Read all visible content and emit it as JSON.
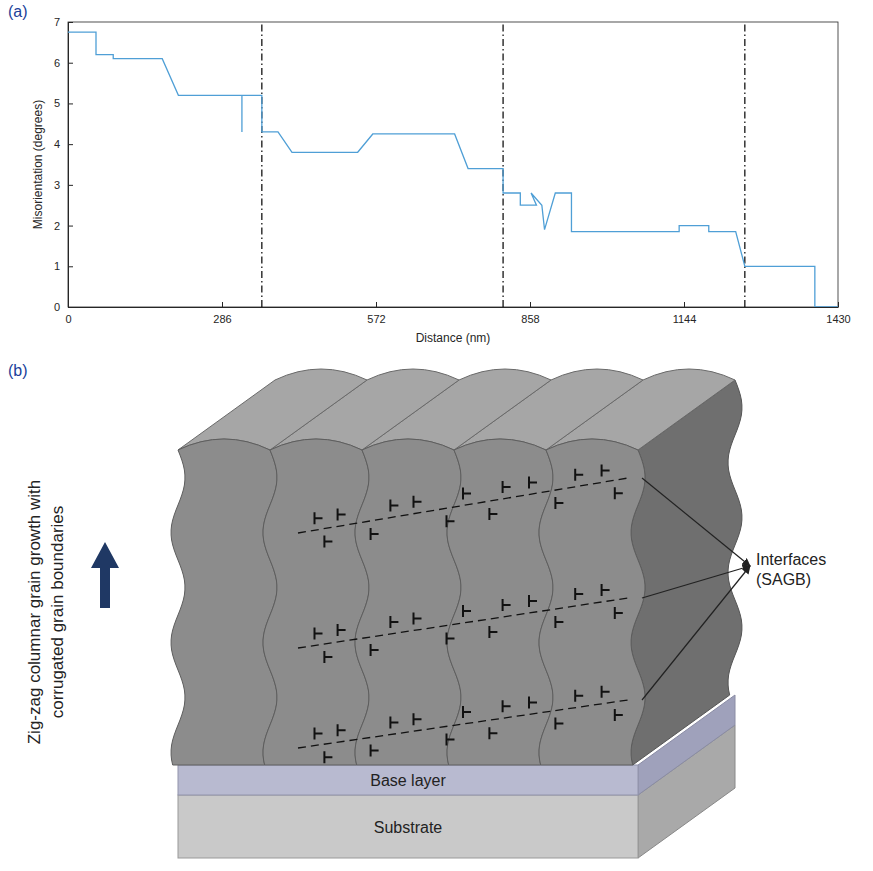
{
  "panels": [
    "(a)",
    "(b)"
  ],
  "chart_data": {
    "type": "line",
    "x_label": "Distance (nm)",
    "y_label": "Misorientation (degrees)",
    "xlim": [
      0,
      1430
    ],
    "ylim": [
      0,
      7
    ],
    "xticks": [
      0,
      286,
      572,
      858,
      1144,
      1430
    ],
    "yticks": [
      0,
      1,
      2,
      3,
      4,
      5,
      6,
      7
    ],
    "grid": false,
    "color": "#4f9fd6",
    "x": [
      0,
      52,
      52,
      84,
      84,
      175,
      205,
      323,
      323,
      323,
      360,
      360,
      390,
      416,
      538,
      566,
      718,
      743,
      808,
      808,
      840,
      840,
      870,
      860,
      880,
      885,
      905,
      935,
      935,
      1135,
      1135,
      1190,
      1190,
      1240,
      1257,
      1387,
      1387,
      1430
    ],
    "values": [
      6.75,
      6.75,
      6.2,
      6.2,
      6.1,
      6.1,
      5.2,
      5.2,
      4.3,
      5.2,
      5.2,
      4.3,
      4.3,
      3.8,
      3.8,
      4.25,
      4.25,
      3.4,
      3.4,
      2.8,
      2.8,
      2.5,
      2.5,
      2.8,
      2.5,
      1.9,
      2.8,
      2.8,
      1.85,
      1.85,
      2.0,
      2.0,
      1.85,
      1.85,
      1.0,
      1.0,
      0,
      0
    ],
    "vlines": [
      360,
      808,
      1257
    ]
  },
  "diagram": {
    "growth_label": "Zig-zag columnar grain growth with corrugated grain boundaries",
    "interfaces_label": "Interfaces (SAGB)",
    "layers": [
      "Base layer",
      "Substrate"
    ]
  }
}
